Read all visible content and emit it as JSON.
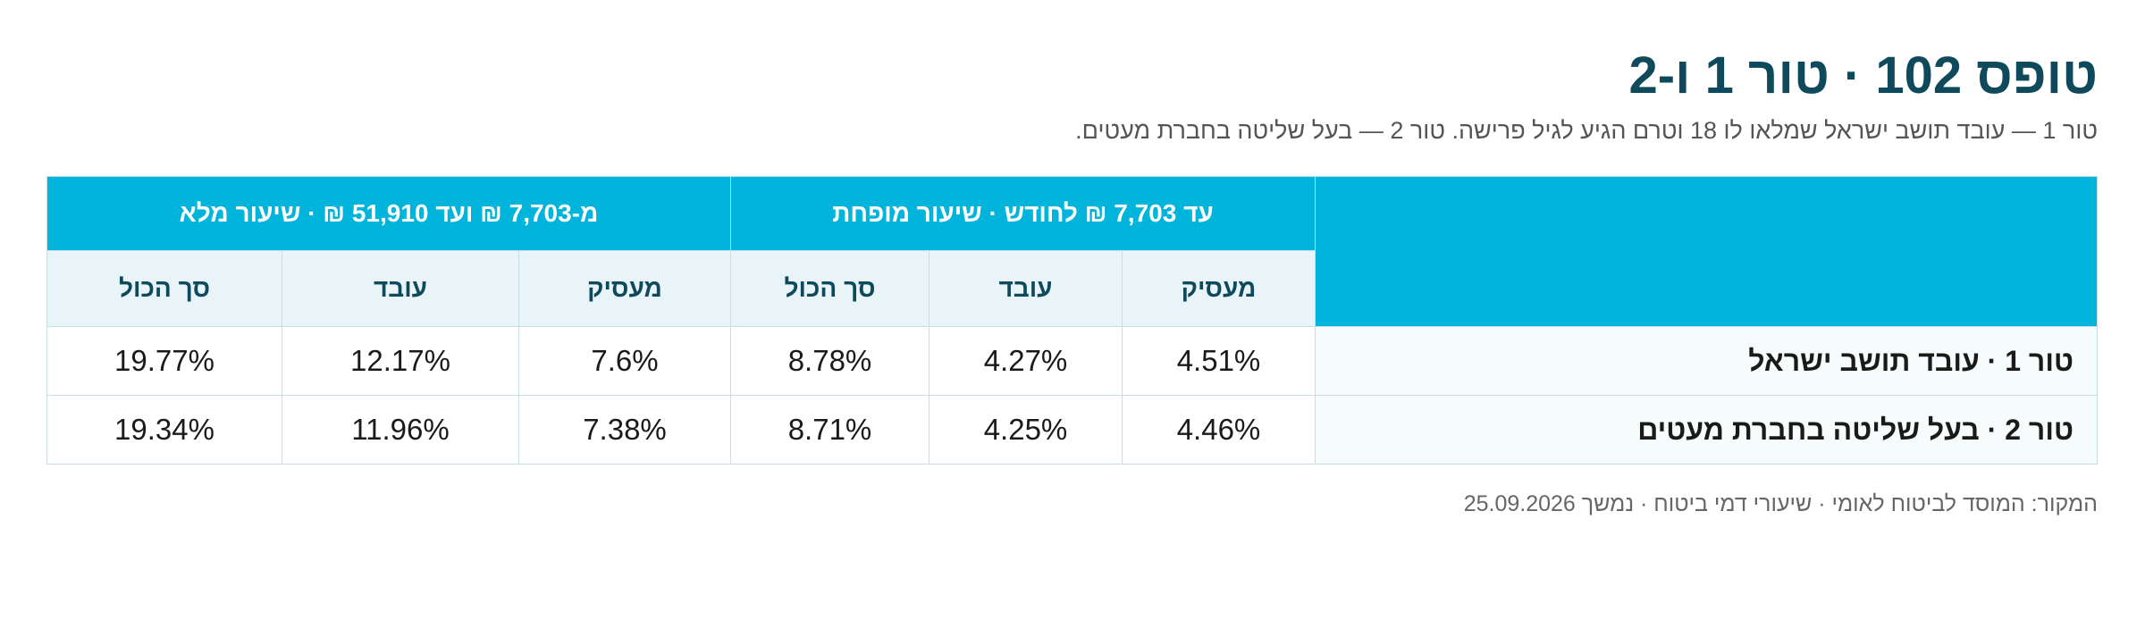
{
  "header": {
    "title": "טופס 102 · טור 1 ו-2",
    "subtitle": "טור 1 — עובד תושב ישראל שמלאו לו 18 וטרם הגיע לגיל פרישה. טור 2 — בעל שליטה בחברת מעטים."
  },
  "table": {
    "groups": [
      {
        "label": "עד 7,703 ₪ לחודש · שיעור מופחת"
      },
      {
        "label": "מ-7,703 ₪ ועד 51,910 ₪ · שיעור מלא"
      }
    ],
    "subheaders": [
      "מעסיק",
      "עובד",
      "סך הכול",
      "מעסיק",
      "עובד",
      "סך הכול"
    ],
    "rows": [
      {
        "label": "טור 1 · עובד תושב ישראל",
        "values": [
          "4.51%",
          "4.27%",
          "8.78%",
          "7.6%",
          "12.17%",
          "19.77%"
        ]
      },
      {
        "label": "טור 2 · בעל שליטה בחברת מעטים",
        "values": [
          "4.46%",
          "4.25%",
          "8.71%",
          "7.38%",
          "11.96%",
          "19.34%"
        ]
      }
    ]
  },
  "footer": {
    "source": "המקור: המוסד לביטוח לאומי · שיעורי דמי ביטוח · נמשך 25.09.2026"
  }
}
